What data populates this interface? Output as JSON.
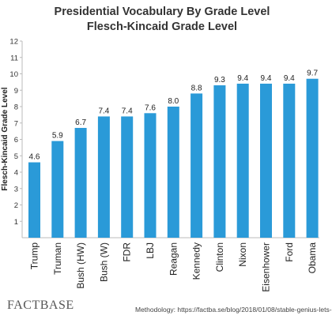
{
  "chart_data": {
    "type": "bar",
    "title": "Presidential Vocabulary By Grade Level",
    "subtitle": "Flesch-Kincaid Grade Level",
    "ylabel": "Flesch-Kincaid Grade Level",
    "xlabel": "",
    "ylim": [
      0,
      12
    ],
    "yticks": [
      1,
      2,
      3,
      4,
      5,
      6,
      7,
      8,
      9,
      10,
      11,
      12
    ],
    "grid": false,
    "categories": [
      "Trump",
      "Truman",
      "Bush (HW)",
      "Bush (W)",
      "FDR",
      "LBJ",
      "Reagan",
      "Kennedy",
      "Clinton",
      "Nixon",
      "Eisenhower",
      "Ford",
      "Obama"
    ],
    "values": [
      4.6,
      5.9,
      6.7,
      7.4,
      7.4,
      7.6,
      8.0,
      8.8,
      9.3,
      9.4,
      9.4,
      9.4,
      9.7
    ],
    "data_labels": [
      "4.6",
      "5.9",
      "6.7",
      "7.4",
      "7.4",
      "7.6",
      "8.0",
      "8.8",
      "9.3",
      "9.4",
      "9.4",
      "9.4",
      "9.7"
    ],
    "bar_color": "#2a9ad8"
  },
  "footer": {
    "brand": "FACTBASE",
    "methodology": "Methodology: https://factba.se/blog/2018/01/08/stable-genius-lets-"
  }
}
